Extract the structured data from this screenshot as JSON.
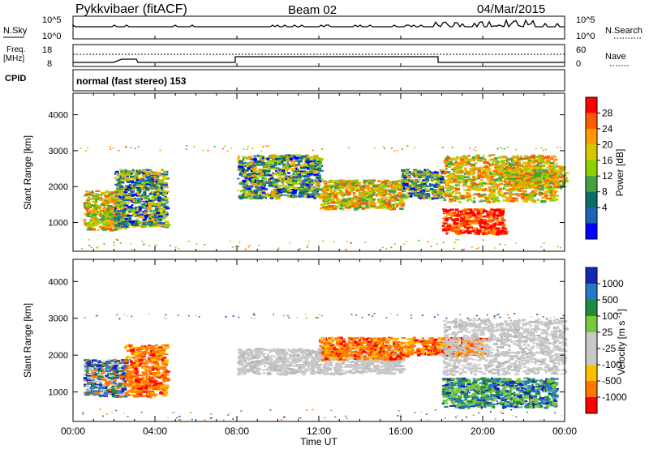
{
  "header": {
    "station": "Pykkvibaer (fitACF)",
    "beam": "Beam 02",
    "date": "04/Mar/2015"
  },
  "status_panels": {
    "nsky_label": "N.Sky",
    "nsky_ticks": [
      "10^5",
      "10^0"
    ],
    "nsearch_ticks": [
      "10^5",
      "10^0"
    ],
    "nsearch_label": "N.Search",
    "freq_label_1": "Freq.",
    "freq_label_2": "[MHz]",
    "freq_ticks": [
      "18",
      "8"
    ],
    "nave_ticks": [
      "60",
      "0"
    ],
    "nave_label": "Nave",
    "cpid_label": "CPID",
    "cpid_text": "normal (fast stereo) 153"
  },
  "chart_data": [
    {
      "type": "heatmap",
      "title": "",
      "ylabel": "Slant Range [km]",
      "yticks": [
        "1000",
        "2000",
        "3000",
        "4000"
      ],
      "ylim": [
        200,
        4600
      ],
      "xlim": [
        "00:00",
        "24:00"
      ],
      "colorbar": {
        "label": "Power [dB]",
        "ticks": [
          "28",
          "24",
          "20",
          "16",
          "12",
          "8",
          "4"
        ],
        "colors": [
          "#ff0000",
          "#ff5a00",
          "#ff9a00",
          "#d6c800",
          "#8cd200",
          "#46a046",
          "#0a6e64",
          "#1e64b4",
          "#0000ff"
        ]
      },
      "echo_regions": [
        {
          "t": [
            0.5,
            2.5
          ],
          "r": [
            800,
            1900
          ],
          "level": "high"
        },
        {
          "t": [
            2.0,
            4.5
          ],
          "r": [
            900,
            2500
          ],
          "level": "mid"
        },
        {
          "t": [
            8.0,
            12.0
          ],
          "r": [
            1700,
            2900
          ],
          "level": "mid"
        },
        {
          "t": [
            12.0,
            16.0
          ],
          "r": [
            1400,
            2200
          ],
          "level": "high"
        },
        {
          "t": [
            16.0,
            18.0
          ],
          "r": [
            1700,
            2500
          ],
          "level": "mid"
        },
        {
          "t": [
            18.0,
            21.0
          ],
          "r": [
            700,
            1400
          ],
          "level": "peak"
        },
        {
          "t": [
            18.0,
            23.5
          ],
          "r": [
            1600,
            2900
          ],
          "level": "high"
        },
        {
          "t": [
            21.0,
            24.0
          ],
          "r": [
            2000,
            2600
          ],
          "level": "high"
        }
      ]
    },
    {
      "type": "heatmap",
      "title": "",
      "ylabel": "Slant Range [km]",
      "yticks": [
        "1000",
        "2000",
        "3000",
        "4000"
      ],
      "ylim": [
        200,
        4600
      ],
      "xlim": [
        "00:00",
        "24:00"
      ],
      "xticks": [
        "00:00",
        "04:00",
        "08:00",
        "12:00",
        "16:00",
        "20:00",
        "00:00"
      ],
      "xlabel": "Time UT",
      "colorbar": {
        "label": "Velocity [m s^-1]",
        "ticks": [
          "1000",
          "500",
          "100",
          "25",
          "-25",
          "-100",
          "-500",
          "-1000"
        ],
        "colors": [
          "#1428b4",
          "#2878c8",
          "#1e8c3c",
          "#78c83c",
          "#c8c8c8",
          "#c8c8c8",
          "#ffbe00",
          "#ff7800",
          "#ff0000"
        ]
      },
      "echo_regions": [
        {
          "t": [
            0.5,
            2.5
          ],
          "r": [
            900,
            1900
          ],
          "velocity": "mixed"
        },
        {
          "t": [
            2.5,
            4.5
          ],
          "r": [
            900,
            2300
          ],
          "velocity": "negative"
        },
        {
          "t": [
            8.0,
            16.0
          ],
          "r": [
            1500,
            2200
          ],
          "velocity": "near-zero"
        },
        {
          "t": [
            12.0,
            16.0
          ],
          "r": [
            1900,
            2500
          ],
          "velocity": "negative"
        },
        {
          "t": [
            16.0,
            20.0
          ],
          "r": [
            2000,
            2500
          ],
          "velocity": "negative"
        },
        {
          "t": [
            18.0,
            23.5
          ],
          "r": [
            600,
            1400
          ],
          "velocity": "positive"
        },
        {
          "t": [
            18.0,
            24.0
          ],
          "r": [
            1500,
            3000
          ],
          "velocity": "near-zero"
        }
      ]
    }
  ]
}
